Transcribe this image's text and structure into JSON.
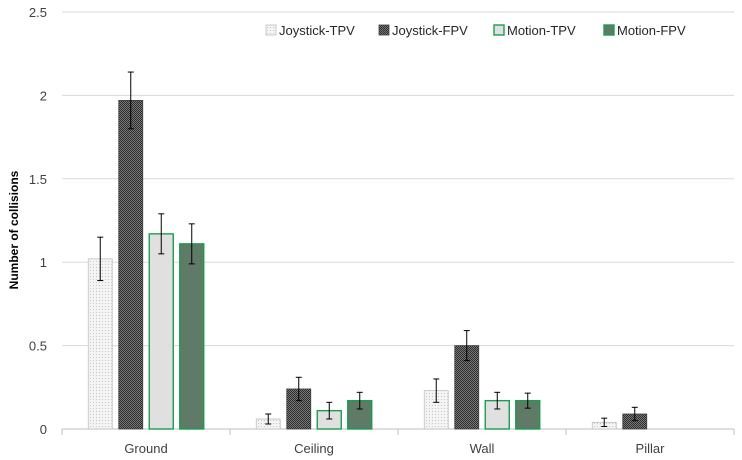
{
  "chart_data": {
    "type": "bar",
    "title": "",
    "xlabel": "",
    "ylabel": "Number of collisions",
    "ylim": [
      0,
      2.5
    ],
    "yticks": [
      "0",
      "0.5",
      "1",
      "1.5",
      "2",
      "2.5"
    ],
    "categories": [
      "Ground",
      "Ceiling",
      "Wall",
      "Pillar"
    ],
    "grid": true,
    "legend_position": "top-right",
    "series": [
      {
        "name": "Joystick-TPV",
        "values": [
          1.02,
          0.06,
          0.23,
          0.04
        ],
        "errors": [
          0.13,
          0.03,
          0.07,
          0.025
        ],
        "fill": "#eeeeee",
        "stroke": "#bfbfbf",
        "pattern": "light-dots"
      },
      {
        "name": "Joystick-FPV",
        "values": [
          1.97,
          0.24,
          0.5,
          0.09
        ],
        "errors": [
          0.17,
          0.07,
          0.09,
          0.04
        ],
        "fill": "#595959",
        "stroke": "#404040",
        "pattern": "dark-checker"
      },
      {
        "name": "Motion-TPV",
        "values": [
          1.17,
          0.11,
          0.17,
          null
        ],
        "errors": [
          0.12,
          0.05,
          0.05,
          null
        ],
        "fill": "#e0e0e0",
        "stroke": "#1a9e4f",
        "pattern": "solid"
      },
      {
        "name": "Motion-FPV",
        "values": [
          1.11,
          0.17,
          0.17,
          null
        ],
        "errors": [
          0.12,
          0.05,
          0.045,
          null
        ],
        "fill": "#5f7a66",
        "stroke": "#1a9e4f",
        "pattern": "solid"
      }
    ]
  }
}
